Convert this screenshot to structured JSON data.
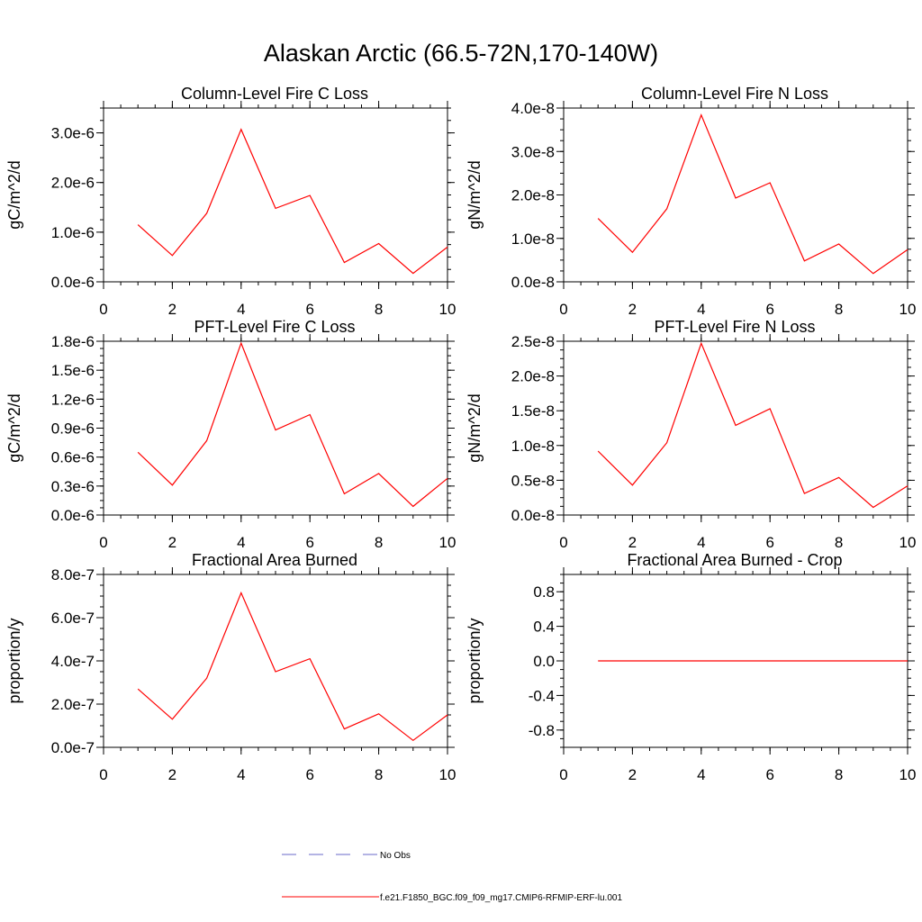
{
  "figure": {
    "title": "Alaskan Arctic (66.5-72N,170-140W)"
  },
  "legend": {
    "entries": [
      {
        "label": "No Obs",
        "color": "#6a6ac8",
        "style": "dashed"
      },
      {
        "label": "f.e21.F1850_BGC.f09_f09_mg17.CMIP6-RFMIP-ERF-lu.001",
        "color": "#ff0000",
        "style": "solid"
      }
    ]
  },
  "chart_data": [
    {
      "type": "line",
      "title": "Column-Level Fire C Loss",
      "xlabel": "",
      "ylabel": "gC/m^2/d",
      "xlim": [
        0,
        10
      ],
      "ylim": [
        0,
        3.5e-06
      ],
      "xticks": [
        0,
        2,
        4,
        6,
        8,
        10
      ],
      "xticklabels": [
        "0",
        "2",
        "4",
        "6",
        "8",
        "10"
      ],
      "yticks": [
        0,
        1e-06,
        2e-06,
        3e-06
      ],
      "yticklabels": [
        "0.0e-6",
        "1.0e-6",
        "2.0e-6",
        "3.0e-6"
      ],
      "series": [
        {
          "name": "f.e21.F1850_BGC.f09_f09_mg17.CMIP6-RFMIP-ERF-lu.001",
          "color": "#ff0000",
          "x": [
            1,
            2,
            3,
            4,
            5,
            6,
            7,
            8,
            9,
            10
          ],
          "values": [
            1.15e-06,
            5.3e-07,
            1.38e-06,
            3.07e-06,
            1.48e-06,
            1.74e-06,
            3.9e-07,
            7.7e-07,
            1.7e-07,
            7e-07
          ]
        }
      ]
    },
    {
      "type": "line",
      "title": "Column-Level Fire N Loss",
      "xlabel": "",
      "ylabel": "gN/m^2/d",
      "xlim": [
        0,
        10
      ],
      "ylim": [
        0,
        4e-08
      ],
      "xticks": [
        0,
        2,
        4,
        6,
        8,
        10
      ],
      "xticklabels": [
        "0",
        "2",
        "4",
        "6",
        "8",
        "10"
      ],
      "yticks": [
        0,
        1e-08,
        2e-08,
        3e-08,
        4e-08
      ],
      "yticklabels": [
        "0.0e-8",
        "1.0e-8",
        "2.0e-8",
        "3.0e-8",
        "4.0e-8"
      ],
      "series": [
        {
          "name": "f.e21.F1850_BGC.f09_f09_mg17.CMIP6-RFMIP-ERF-lu.001",
          "color": "#ff0000",
          "x": [
            1,
            2,
            3,
            4,
            5,
            6,
            7,
            8,
            9,
            10
          ],
          "values": [
            1.46e-08,
            6.8e-09,
            1.68e-08,
            3.84e-08,
            1.93e-08,
            2.28e-08,
            4.8e-09,
            8.7e-09,
            1.9e-09,
            7.4e-09
          ]
        }
      ]
    },
    {
      "type": "line",
      "title": "PFT-Level Fire C Loss",
      "xlabel": "",
      "ylabel": "gC/m^2/d",
      "xlim": [
        0,
        10
      ],
      "ylim": [
        0,
        1.8e-06
      ],
      "xticks": [
        0,
        2,
        4,
        6,
        8,
        10
      ],
      "xticklabels": [
        "0",
        "2",
        "4",
        "6",
        "8",
        "10"
      ],
      "yticks": [
        0,
        3e-07,
        6e-07,
        9e-07,
        1.2e-06,
        1.5e-06,
        1.8e-06
      ],
      "yticklabels": [
        "0.0e-6",
        "0.3e-6",
        "0.6e-6",
        "0.9e-6",
        "1.2e-6",
        "1.5e-6",
        "1.8e-6"
      ],
      "series": [
        {
          "name": "f.e21.F1850_BGC.f09_f09_mg17.CMIP6-RFMIP-ERF-lu.001",
          "color": "#ff0000",
          "x": [
            1,
            2,
            3,
            4,
            5,
            6,
            7,
            8,
            9,
            10
          ],
          "values": [
            6.5e-07,
            3.1e-07,
            7.7e-07,
            1.78e-06,
            8.8e-07,
            1.04e-06,
            2.2e-07,
            4.3e-07,
            9e-08,
            3.8e-07
          ]
        }
      ]
    },
    {
      "type": "line",
      "title": "PFT-Level Fire N Loss",
      "xlabel": "",
      "ylabel": "gN/m^2/d",
      "xlim": [
        0,
        10
      ],
      "ylim": [
        0,
        2.5e-08
      ],
      "xticks": [
        0,
        2,
        4,
        6,
        8,
        10
      ],
      "xticklabels": [
        "0",
        "2",
        "4",
        "6",
        "8",
        "10"
      ],
      "yticks": [
        0,
        5e-09,
        1e-08,
        1.5e-08,
        2e-08,
        2.5e-08
      ],
      "yticklabels": [
        "0.0e-8",
        "0.5e-8",
        "1.0e-8",
        "1.5e-8",
        "2.0e-8",
        "2.5e-8"
      ],
      "series": [
        {
          "name": "f.e21.F1850_BGC.f09_f09_mg17.CMIP6-RFMIP-ERF-lu.001",
          "color": "#ff0000",
          "x": [
            1,
            2,
            3,
            4,
            5,
            6,
            7,
            8,
            9,
            10
          ],
          "values": [
            9.2e-09,
            4.3e-09,
            1.04e-08,
            2.47e-08,
            1.29e-08,
            1.53e-08,
            3.1e-09,
            5.4e-09,
            1.1e-09,
            4.2e-09
          ]
        }
      ]
    },
    {
      "type": "line",
      "title": "Fractional Area Burned",
      "xlabel": "",
      "ylabel": "proportion/y",
      "xlim": [
        0,
        10
      ],
      "ylim": [
        0,
        8e-07
      ],
      "xticks": [
        0,
        2,
        4,
        6,
        8,
        10
      ],
      "xticklabels": [
        "0",
        "2",
        "4",
        "6",
        "8",
        "10"
      ],
      "yticks": [
        0,
        2e-07,
        4e-07,
        6e-07,
        8e-07
      ],
      "yticklabels": [
        "0.0e-7",
        "2.0e-7",
        "4.0e-7",
        "6.0e-7",
        "8.0e-7"
      ],
      "series": [
        {
          "name": "f.e21.F1850_BGC.f09_f09_mg17.CMIP6-RFMIP-ERF-lu.001",
          "color": "#ff0000",
          "x": [
            1,
            2,
            3,
            4,
            5,
            6,
            7,
            8,
            9,
            10
          ],
          "values": [
            2.7e-07,
            1.3e-07,
            3.2e-07,
            7.15e-07,
            3.5e-07,
            4.1e-07,
            8.5e-08,
            1.55e-07,
            3.2e-08,
            1.5e-07
          ]
        }
      ]
    },
    {
      "type": "line",
      "title": "Fractional Area Burned - Crop",
      "xlabel": "",
      "ylabel": "proportion/y",
      "xlim": [
        0,
        10
      ],
      "ylim": [
        -1.0,
        1.0
      ],
      "xticks": [
        0,
        2,
        4,
        6,
        8,
        10
      ],
      "xticklabels": [
        "0",
        "2",
        "4",
        "6",
        "8",
        "10"
      ],
      "yticks": [
        -0.8,
        -0.4,
        0,
        0.4,
        0.8
      ],
      "yticklabels": [
        "-0.8",
        "-0.4",
        "0.0",
        "0.4",
        "0.8"
      ],
      "series": [
        {
          "name": "f.e21.F1850_BGC.f09_f09_mg17.CMIP6-RFMIP-ERF-lu.001",
          "color": "#ff0000",
          "x": [
            1,
            2,
            3,
            4,
            5,
            6,
            7,
            8,
            9,
            10
          ],
          "values": [
            0,
            0,
            0,
            0,
            0,
            0,
            0,
            0,
            0,
            0
          ]
        }
      ]
    }
  ]
}
